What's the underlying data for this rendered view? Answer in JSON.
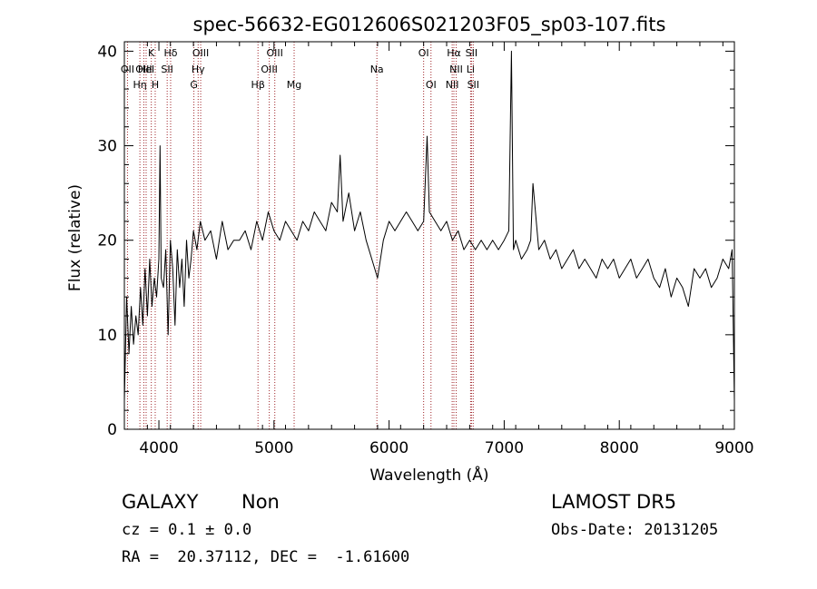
{
  "chart_data": {
    "type": "line",
    "title": "spec-56632-EG012606S021203F05_sp03-107.fits",
    "xlabel": "Wavelength (Å)",
    "ylabel": "Flux (relative)",
    "xlim": [
      3700,
      9000
    ],
    "ylim": [
      0,
      41
    ],
    "x_ticks": [
      4000,
      5000,
      6000,
      7000,
      8000,
      9000
    ],
    "y_ticks": [
      0,
      10,
      20,
      30,
      40
    ],
    "grid": false,
    "series": [
      {
        "x": [
          3700,
          3720,
          3740,
          3760,
          3780,
          3800,
          3820,
          3840,
          3860,
          3880,
          3900,
          3920,
          3940,
          3960,
          3980,
          4000,
          4010,
          4020,
          4040,
          4060,
          4080,
          4100,
          4120,
          4140,
          4160,
          4180,
          4200,
          4220,
          4240,
          4260,
          4280,
          4300,
          4330,
          4360,
          4400,
          4450,
          4500,
          4550,
          4600,
          4650,
          4700,
          4750,
          4800,
          4850,
          4900,
          4950,
          5000,
          5050,
          5100,
          5150,
          5200,
          5250,
          5300,
          5350,
          5400,
          5450,
          5500,
          5550,
          5575,
          5600,
          5650,
          5700,
          5750,
          5800,
          5850,
          5900,
          5950,
          6000,
          6050,
          6100,
          6150,
          6200,
          6250,
          6300,
          6330,
          6350,
          6400,
          6450,
          6500,
          6550,
          6600,
          6650,
          6700,
          6750,
          6800,
          6850,
          6900,
          6950,
          7000,
          7040,
          7063,
          7080,
          7100,
          7150,
          7200,
          7230,
          7250,
          7300,
          7350,
          7400,
          7450,
          7500,
          7550,
          7600,
          7650,
          7700,
          7750,
          7800,
          7850,
          7900,
          7950,
          8000,
          8050,
          8100,
          8150,
          8200,
          8250,
          8300,
          8350,
          8400,
          8450,
          8500,
          8550,
          8600,
          8650,
          8700,
          8750,
          8800,
          8850,
          8900,
          8950,
          8980,
          9000
        ],
        "y": [
          3,
          14,
          8,
          13,
          9,
          12,
          10,
          15,
          11,
          17,
          12,
          18,
          13,
          16,
          14,
          18,
          30,
          16,
          15,
          19,
          10,
          20,
          17,
          11,
          19,
          15,
          18,
          13,
          20,
          16,
          18,
          21,
          19,
          22,
          20,
          21,
          18,
          22,
          19,
          20,
          20,
          21,
          19,
          22,
          20,
          23,
          21,
          20,
          22,
          21,
          20,
          22,
          21,
          23,
          22,
          21,
          24,
          23,
          29,
          22,
          25,
          21,
          23,
          20,
          18,
          16,
          20,
          22,
          21,
          22,
          23,
          22,
          21,
          22,
          31,
          23,
          22,
          21,
          22,
          20,
          21,
          19,
          20,
          19,
          20,
          19,
          20,
          19,
          20,
          21,
          40,
          19,
          20,
          18,
          19,
          20,
          26,
          19,
          20,
          18,
          19,
          17,
          18,
          19,
          17,
          18,
          17,
          16,
          18,
          17,
          18,
          16,
          17,
          18,
          16,
          17,
          18,
          16,
          15,
          17,
          14,
          16,
          15,
          13,
          17,
          16,
          17,
          15,
          16,
          18,
          17,
          19,
          3
        ]
      }
    ],
    "line_markers": [
      {
        "wavelength": 3727,
        "label": "OII",
        "row": 2
      },
      {
        "wavelength": 3835,
        "label": "Hη",
        "row": 3
      },
      {
        "wavelength": 3869,
        "label": "OIII",
        "row": 2
      },
      {
        "wavelength": 3889,
        "label": "HeI",
        "row": 2
      },
      {
        "wavelength": 3934,
        "label": "K",
        "row": 1
      },
      {
        "wavelength": 3968,
        "label": "H",
        "row": 3
      },
      {
        "wavelength": 4102,
        "label": "Hδ",
        "row": 1
      },
      {
        "wavelength": 4072,
        "label": "SII",
        "row": 2
      },
      {
        "wavelength": 4304,
        "label": "G",
        "row": 3
      },
      {
        "wavelength": 4341,
        "label": "Hγ",
        "row": 2
      },
      {
        "wavelength": 4363,
        "label": "OIII",
        "row": 1
      },
      {
        "wavelength": 4861,
        "label": "Hβ",
        "row": 3
      },
      {
        "wavelength": 4959,
        "label": "OIII",
        "row": 2
      },
      {
        "wavelength": 5007,
        "label": "OIII",
        "row": 1
      },
      {
        "wavelength": 5175,
        "label": "Mg",
        "row": 3
      },
      {
        "wavelength": 5894,
        "label": "Na",
        "row": 2
      },
      {
        "wavelength": 6300,
        "label": "OI",
        "row": 1
      },
      {
        "wavelength": 6364,
        "label": "OI",
        "row": 3
      },
      {
        "wavelength": 6548,
        "label": "NII",
        "row": 3
      },
      {
        "wavelength": 6563,
        "label": "Hα",
        "row": 1
      },
      {
        "wavelength": 6583,
        "label": "NII",
        "row": 2
      },
      {
        "wavelength": 6708,
        "label": "Li",
        "row": 2
      },
      {
        "wavelength": 6716,
        "label": "SII",
        "row": 1
      },
      {
        "wavelength": 6731,
        "label": "SII",
        "row": 3
      }
    ],
    "colors": {
      "spectrum": "#000000",
      "line_marker": "#a0262b",
      "axes": "#000000"
    }
  },
  "info": {
    "object_class": "GALAXY",
    "subclass": "Non",
    "redshift": "cz = 0.1 ± 0.0",
    "coords": "RA =  20.37112, DEC =  -1.61600",
    "survey": "LAMOST DR5",
    "obs_date": "Obs-Date: 20131205"
  }
}
